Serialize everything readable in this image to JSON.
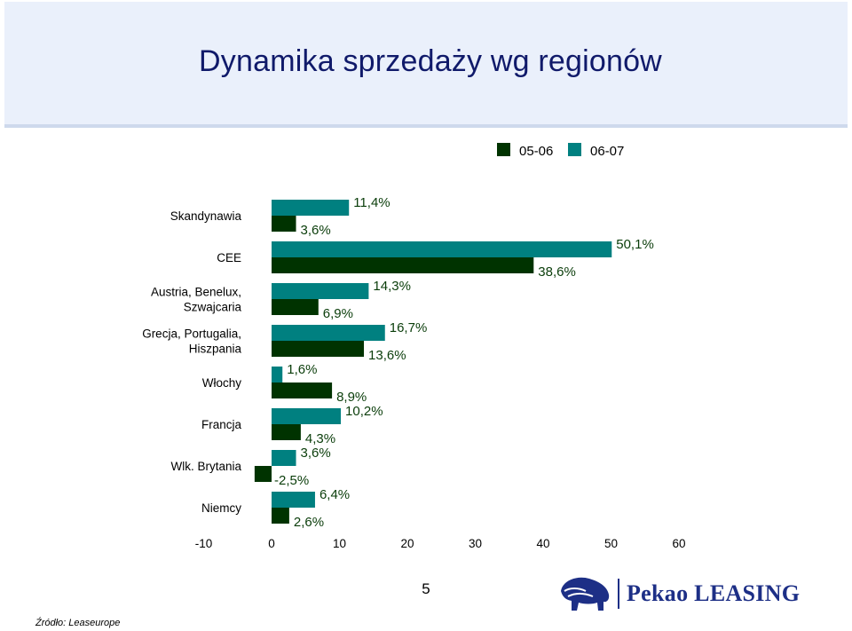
{
  "slide": {
    "title": "Dynamika sprzedaży wg regionów",
    "page_number": "5",
    "source": "Źródło: Leaseurope",
    "brand": "Pekao LEASING",
    "logo_icon": "bison-icon"
  },
  "chart_data": {
    "type": "bar",
    "orientation": "horizontal",
    "categories": [
      "Skandynawia",
      "CEE",
      "Austria, Benelux, Szwajcaria",
      "Grecja, Portugalia, Hiszpania",
      "Włochy",
      "Francja",
      "Wlk. Brytania",
      "Niemcy"
    ],
    "category_label_lines": [
      [
        "Skandynawia"
      ],
      [
        "CEE"
      ],
      [
        "Austria, Benelux,",
        "Szwajcaria"
      ],
      [
        "Grecja, Portugalia,",
        "Hiszpania"
      ],
      [
        "Włochy"
      ],
      [
        "Francja"
      ],
      [
        "Wlk. Brytania"
      ],
      [
        "Niemcy"
      ]
    ],
    "series": [
      {
        "name": "05-06",
        "color": "#003300",
        "values": [
          3.6,
          38.6,
          6.9,
          13.6,
          8.9,
          4.3,
          -2.5,
          2.6
        ],
        "labels": [
          "3,6%",
          "38,6%",
          "6,9%",
          "13,6%",
          "8,9%",
          "4,3%",
          "-2,5%",
          "2,6%"
        ]
      },
      {
        "name": "06-07",
        "color": "#008080",
        "values": [
          11.4,
          50.1,
          14.3,
          16.7,
          1.6,
          10.2,
          3.6,
          6.4
        ],
        "labels": [
          "11,4%",
          "50,1%",
          "14,3%",
          "16,7%",
          "1,6%",
          "10,2%",
          "3,6%",
          "6,4%"
        ]
      }
    ],
    "x_ticks": [
      "-10",
      "0",
      "10",
      "20",
      "30",
      "40",
      "50",
      "60"
    ],
    "xlim": [
      -10,
      60
    ],
    "legend_position": "top-right",
    "label_color": "#0a3d0a",
    "grid": false
  }
}
